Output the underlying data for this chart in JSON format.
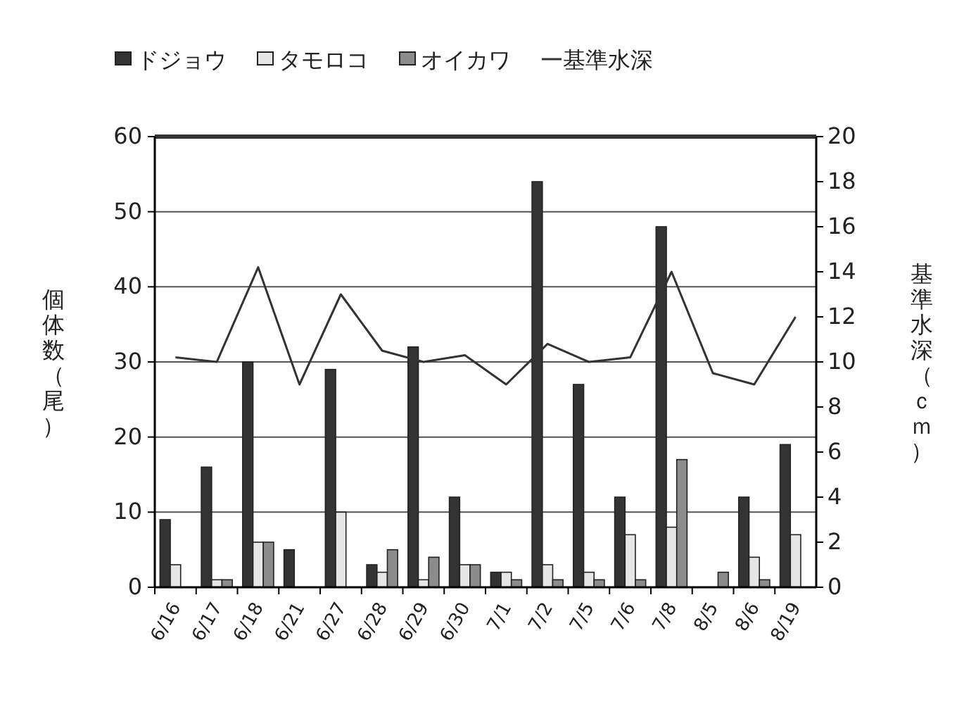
{
  "chart_data": {
    "type": "bar",
    "ylabel": "個体数（尾）",
    "y2label": "基準水深（ｃｍ）",
    "categories": [
      "6/16",
      "6/17",
      "6/18",
      "6/21",
      "6/27",
      "6/28",
      "6/29",
      "6/30",
      "7/1",
      "7/2",
      "7/5",
      "7/6",
      "7/8",
      "8/5",
      "8/6",
      "8/19"
    ],
    "series": [
      {
        "name": "ドジョウ",
        "color": "#333333",
        "values": [
          9,
          16,
          30,
          5,
          29,
          3,
          32,
          12,
          2,
          54,
          27,
          12,
          48,
          0,
          12,
          19
        ]
      },
      {
        "name": "タモロコ",
        "color": "#e6e6e6",
        "values": [
          3,
          1,
          6,
          0,
          10,
          2,
          1,
          3,
          2,
          3,
          2,
          7,
          8,
          0,
          4,
          7
        ]
      },
      {
        "name": "オイカワ",
        "color": "#8c8c8c",
        "values": [
          0,
          1,
          6,
          0,
          0,
          5,
          4,
          3,
          1,
          1,
          1,
          1,
          17,
          2,
          1,
          0
        ]
      },
      {
        "name": "基準水深",
        "type": "line",
        "axis": "y2",
        "color": "#333333",
        "values": [
          10.2,
          10,
          14.2,
          9,
          13,
          10.5,
          10,
          10.3,
          9,
          10.8,
          10,
          10.2,
          14,
          9.5,
          9,
          12
        ]
      }
    ],
    "ylim": [
      0,
      60
    ],
    "yticks": [
      0,
      10,
      20,
      30,
      40,
      50,
      60
    ],
    "y2lim": [
      0,
      20
    ],
    "y2ticks": [
      0,
      2,
      4,
      6,
      8,
      10,
      12,
      14,
      16,
      18,
      20
    ],
    "grid": "y",
    "legend": "top"
  }
}
